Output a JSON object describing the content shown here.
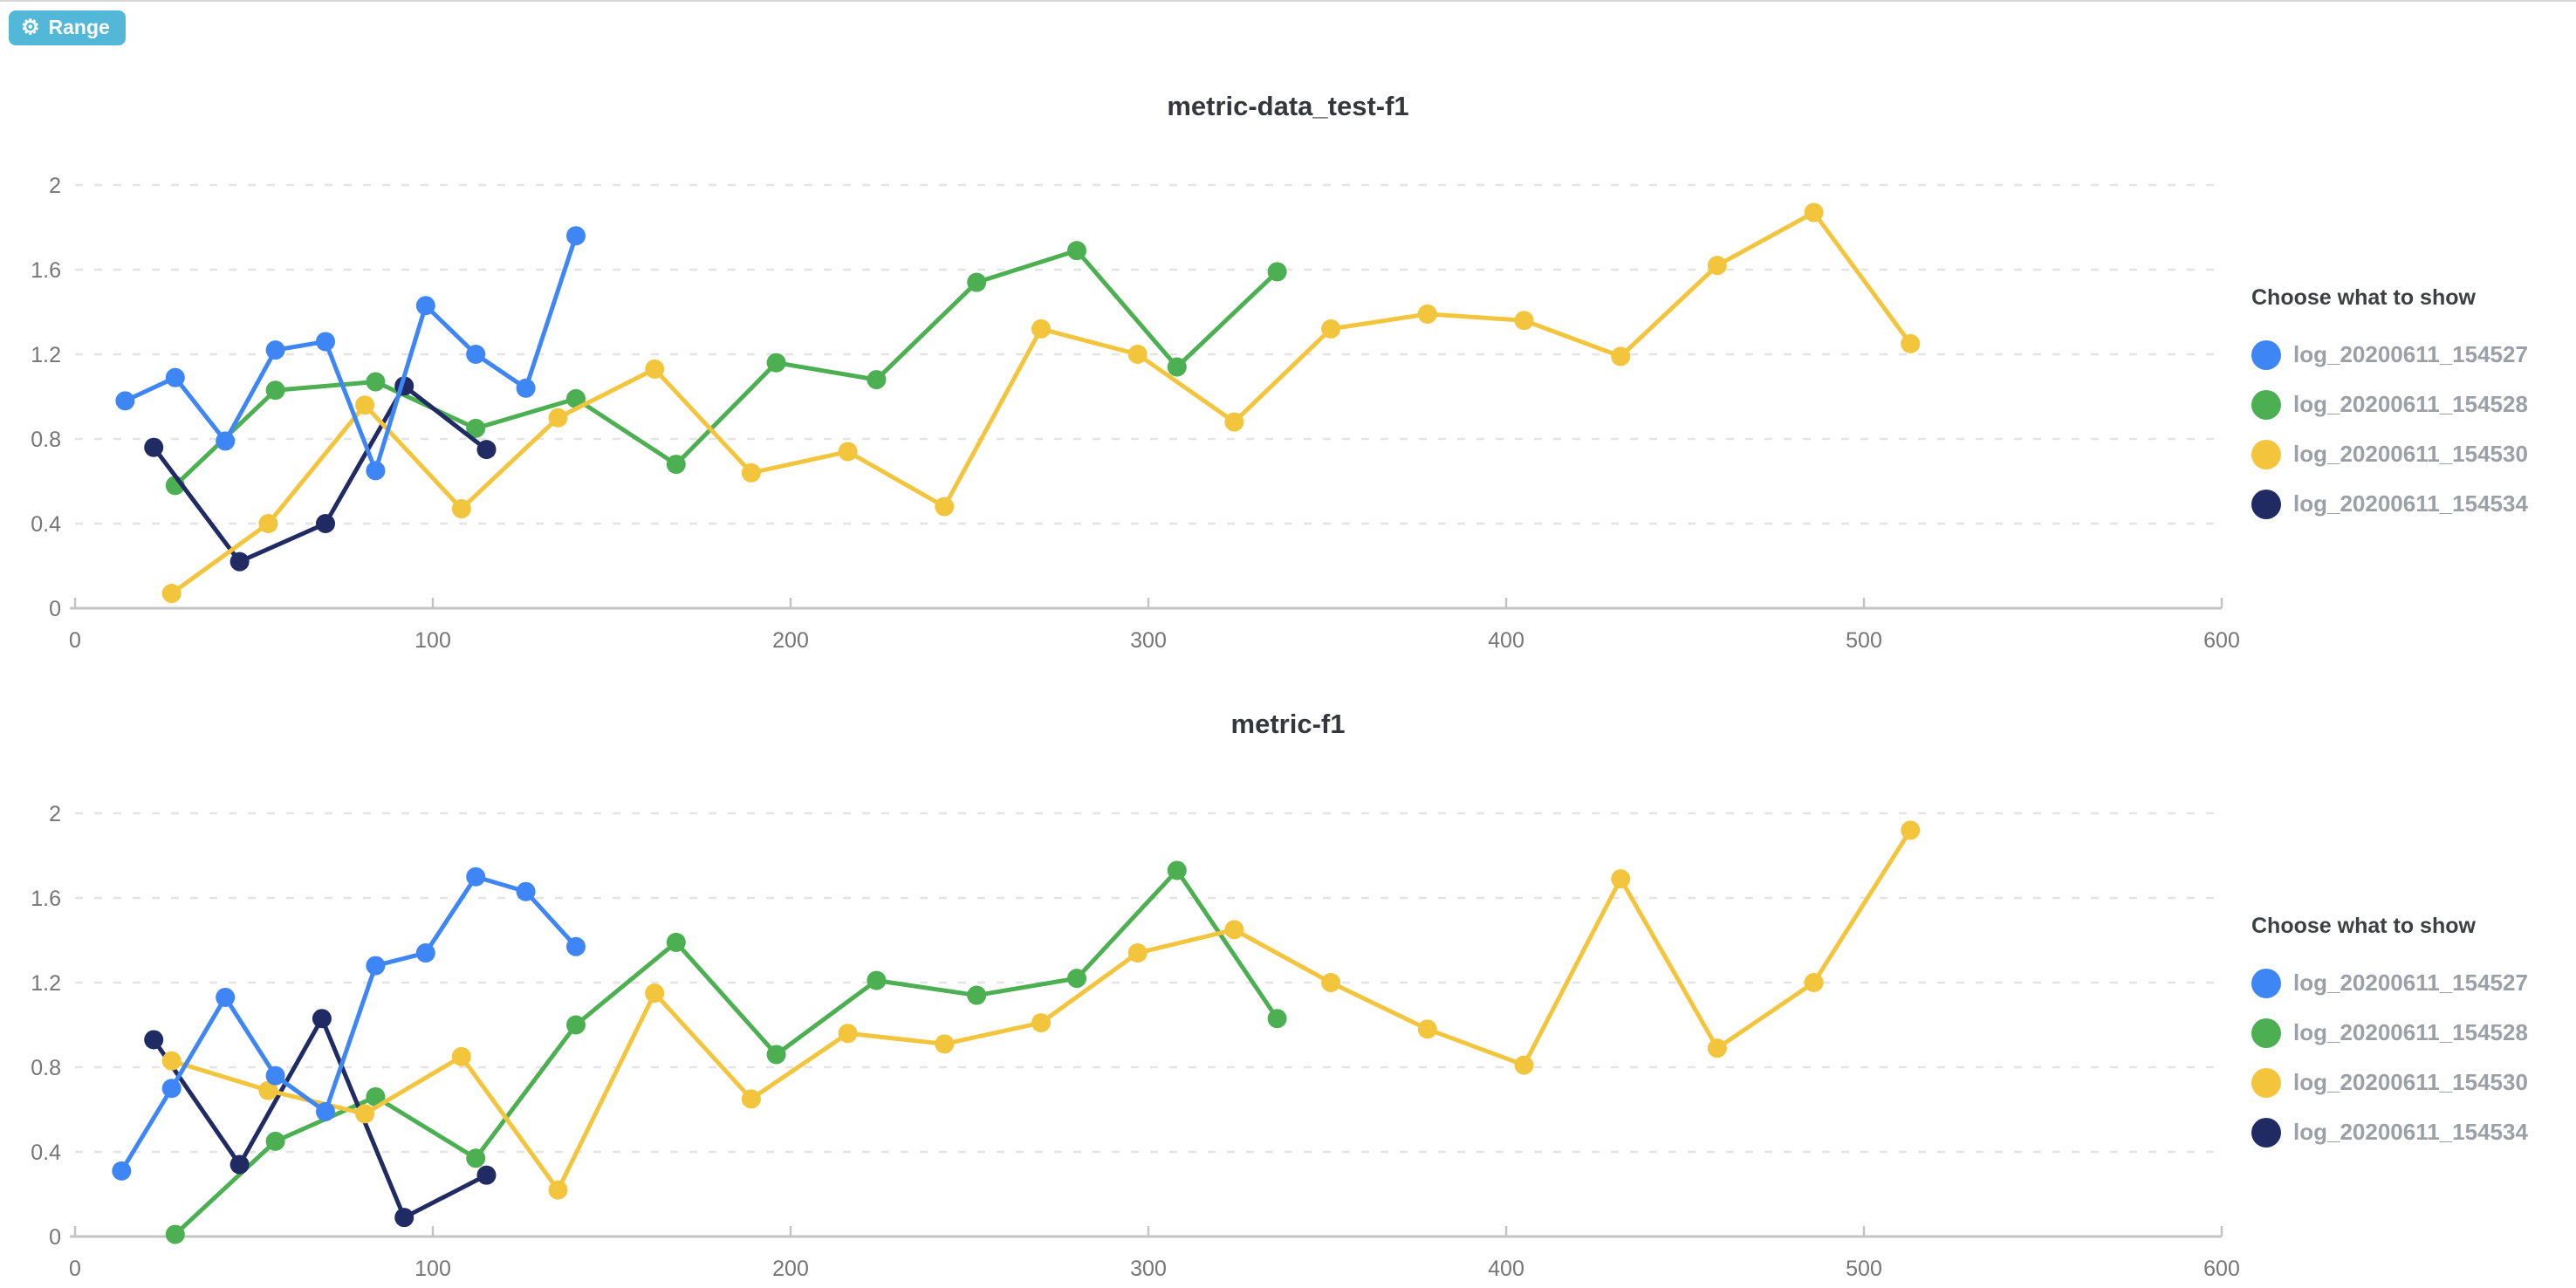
{
  "toolbar": {
    "range_label": "Range",
    "range_icon": "gear-icon",
    "range_button_color": "#53b7d8"
  },
  "legend": {
    "title": "Choose what to show",
    "position": "right"
  },
  "palette": {
    "blue": "#3e86f5",
    "green": "#4cb052",
    "yellow": "#f2c53d",
    "navy": "#202b63",
    "grid": "#e4e4e4",
    "axis": "#c4c4c4",
    "tick_text": "#757575",
    "title_text": "#36373c"
  },
  "chart_data": [
    {
      "type": "line",
      "title": "metric-data_test-f1",
      "xlabel": "",
      "ylabel": "",
      "xlim": [
        0,
        600
      ],
      "ylim": [
        0,
        2
      ],
      "x_ticks": [
        0,
        100,
        200,
        300,
        400,
        500,
        600
      ],
      "x_tick_labels": [
        "0",
        "100",
        "200",
        "300",
        "400",
        "500",
        "600"
      ],
      "y_ticks": [
        0,
        0.4,
        0.8,
        1.2,
        1.6,
        2
      ],
      "y_tick_labels": [
        "0",
        "0.4",
        "0.8",
        "1.2",
        "1.6",
        "2"
      ],
      "grid": "horizontal-dashed",
      "legend_position": "right",
      "series": [
        {
          "name": "log_20200611_154527",
          "color": "#3e86f5",
          "points": [
            [
              14,
              0.98
            ],
            [
              28,
              1.09
            ],
            [
              42,
              0.79
            ],
            [
              56,
              1.22
            ],
            [
              70,
              1.26
            ],
            [
              84,
              0.65
            ],
            [
              98,
              1.43
            ],
            [
              112,
              1.2
            ],
            [
              126,
              1.04
            ],
            [
              140,
              1.76
            ]
          ]
        },
        {
          "name": "log_20200611_154528",
          "color": "#4cb052",
          "points": [
            [
              28,
              0.58
            ],
            [
              56,
              1.03
            ],
            [
              84,
              1.07
            ],
            [
              112,
              0.85
            ],
            [
              140,
              0.99
            ],
            [
              168,
              0.68
            ],
            [
              196,
              1.16
            ],
            [
              224,
              1.08
            ],
            [
              252,
              1.54
            ],
            [
              280,
              1.69
            ],
            [
              308,
              1.14
            ],
            [
              336,
              1.59
            ]
          ]
        },
        {
          "name": "log_20200611_154530",
          "color": "#f2c53d",
          "points": [
            [
              27,
              0.07
            ],
            [
              54,
              0.4
            ],
            [
              81,
              0.96
            ],
            [
              108,
              0.47
            ],
            [
              135,
              0.9
            ],
            [
              162,
              1.13
            ],
            [
              189,
              0.64
            ],
            [
              216,
              0.74
            ],
            [
              243,
              0.48
            ],
            [
              270,
              1.32
            ],
            [
              297,
              1.2
            ],
            [
              324,
              0.88
            ],
            [
              351,
              1.32
            ],
            [
              378,
              1.39
            ],
            [
              405,
              1.36
            ],
            [
              432,
              1.19
            ],
            [
              459,
              1.62
            ],
            [
              486,
              1.87
            ],
            [
              513,
              1.25
            ]
          ]
        },
        {
          "name": "log_20200611_154534",
          "color": "#202b63",
          "points": [
            [
              22,
              0.76
            ],
            [
              46,
              0.22
            ],
            [
              70,
              0.4
            ],
            [
              92,
              1.05
            ],
            [
              115,
              0.75
            ]
          ]
        }
      ]
    },
    {
      "type": "line",
      "title": "metric-f1",
      "xlabel": "",
      "ylabel": "",
      "xlim": [
        0,
        600
      ],
      "ylim": [
        0,
        2
      ],
      "x_ticks": [
        0,
        100,
        200,
        300,
        400,
        500,
        600
      ],
      "x_tick_labels": [
        "0",
        "100",
        "200",
        "300",
        "400",
        "500",
        "600"
      ],
      "y_ticks": [
        0,
        0.4,
        0.8,
        1.2,
        1.6,
        2
      ],
      "y_tick_labels": [
        "0",
        "0.4",
        "0.8",
        "1.2",
        "1.6",
        "2"
      ],
      "grid": "horizontal-dashed",
      "legend_position": "right",
      "series": [
        {
          "name": "log_20200611_154527",
          "color": "#3e86f5",
          "points": [
            [
              13,
              0.31
            ],
            [
              27,
              0.7
            ],
            [
              42,
              1.13
            ],
            [
              56,
              0.76
            ],
            [
              70,
              0.59
            ],
            [
              84,
              1.28
            ],
            [
              98,
              1.34
            ],
            [
              112,
              1.7
            ],
            [
              126,
              1.63
            ],
            [
              140,
              1.37
            ]
          ]
        },
        {
          "name": "log_20200611_154528",
          "color": "#4cb052",
          "points": [
            [
              28,
              0.01
            ],
            [
              56,
              0.45
            ],
            [
              84,
              0.66
            ],
            [
              112,
              0.37
            ],
            [
              140,
              1.0
            ],
            [
              168,
              1.39
            ],
            [
              196,
              0.86
            ],
            [
              224,
              1.21
            ],
            [
              252,
              1.14
            ],
            [
              280,
              1.22
            ],
            [
              308,
              1.73
            ],
            [
              336,
              1.03
            ]
          ]
        },
        {
          "name": "log_20200611_154530",
          "color": "#f2c53d",
          "points": [
            [
              27,
              0.83
            ],
            [
              54,
              0.69
            ],
            [
              81,
              0.58
            ],
            [
              108,
              0.85
            ],
            [
              135,
              0.22
            ],
            [
              162,
              1.15
            ],
            [
              189,
              0.65
            ],
            [
              216,
              0.96
            ],
            [
              243,
              0.91
            ],
            [
              270,
              1.01
            ],
            [
              297,
              1.34
            ],
            [
              324,
              1.45
            ],
            [
              351,
              1.2
            ],
            [
              378,
              0.98
            ],
            [
              405,
              0.81
            ],
            [
              432,
              1.69
            ],
            [
              459,
              0.89
            ],
            [
              486,
              1.2
            ],
            [
              513,
              1.92
            ]
          ]
        },
        {
          "name": "log_20200611_154534",
          "color": "#202b63",
          "points": [
            [
              22,
              0.93
            ],
            [
              46,
              0.34
            ],
            [
              69,
              1.03
            ],
            [
              92,
              0.09
            ],
            [
              115,
              0.29
            ]
          ]
        }
      ]
    }
  ]
}
